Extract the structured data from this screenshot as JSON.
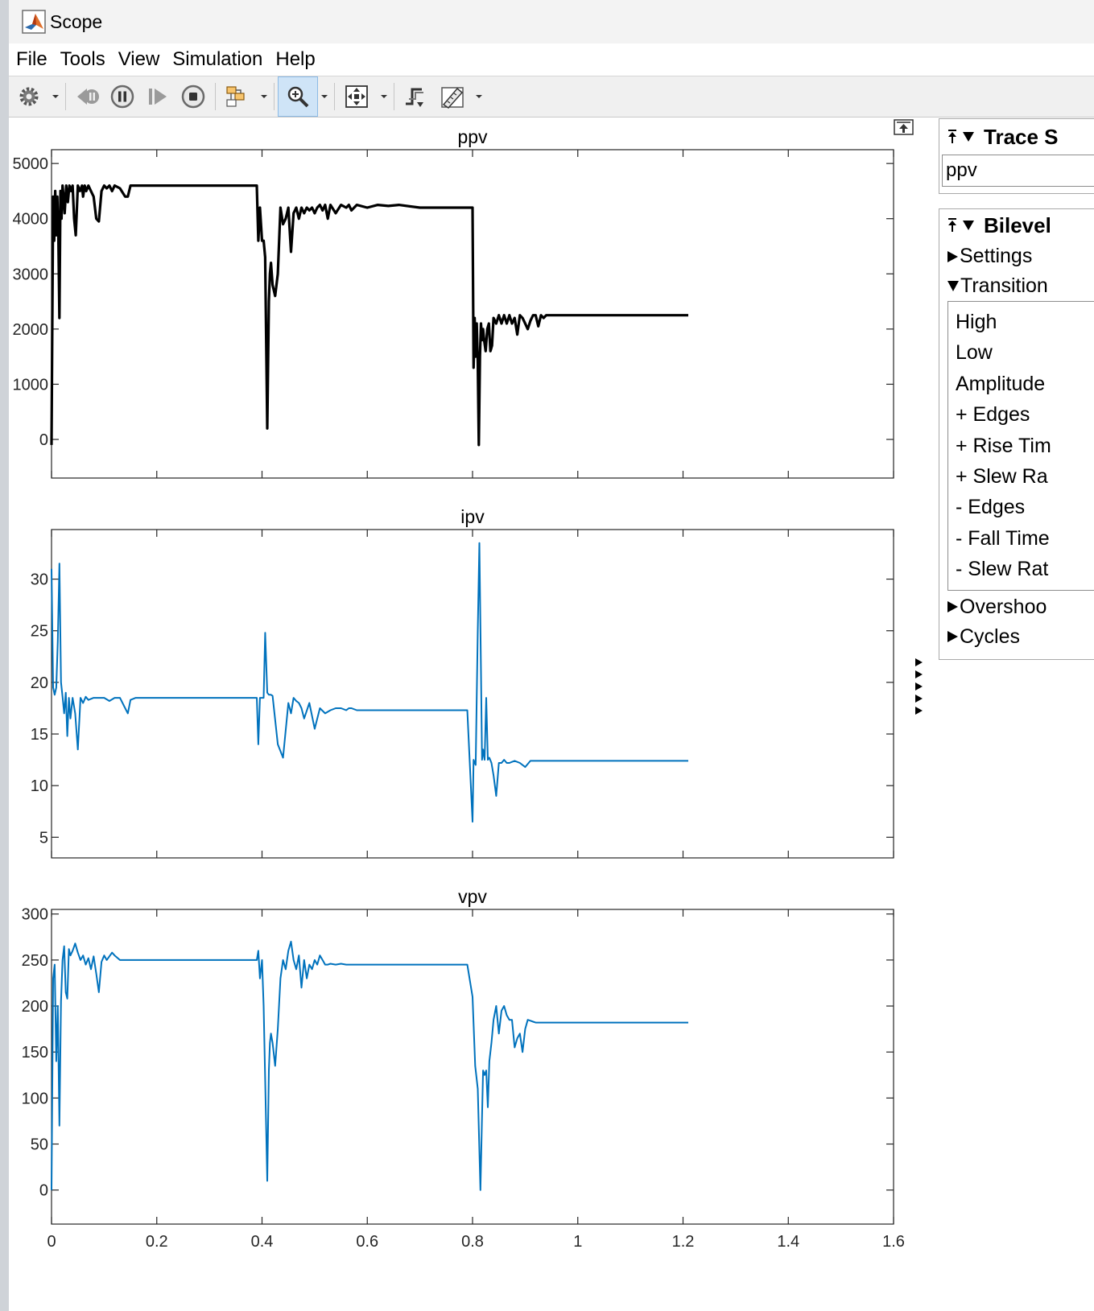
{
  "window": {
    "title": "Scope"
  },
  "menubar": {
    "items": [
      {
        "label": "File",
        "name": "menu-file"
      },
      {
        "label": "Tools",
        "name": "menu-tools"
      },
      {
        "label": "View",
        "name": "menu-view"
      },
      {
        "label": "Simulation",
        "name": "menu-simulation"
      },
      {
        "label": "Help",
        "name": "menu-help"
      }
    ]
  },
  "toolbar": {
    "buttons": [
      {
        "name": "settings-gear-button",
        "icon": "gear-icon"
      },
      {
        "name": "step-back-button",
        "icon": "step-back-icon"
      },
      {
        "name": "pause-button",
        "icon": "pause-icon"
      },
      {
        "name": "step-forward-button",
        "icon": "step-forward-icon"
      },
      {
        "name": "stop-button",
        "icon": "stop-icon"
      },
      {
        "name": "highlight-block-button",
        "icon": "block-diagram-icon"
      },
      {
        "name": "zoom-in-button",
        "icon": "zoom-in-icon",
        "active": true
      },
      {
        "name": "autoscale-button",
        "icon": "autoscale-icon"
      },
      {
        "name": "triggers-button",
        "icon": "trigger-icon"
      },
      {
        "name": "measurements-button",
        "icon": "ruler-icon"
      }
    ]
  },
  "colors": {
    "ppv_line": "#000000",
    "ipv_line": "#0072bd",
    "vpv_line": "#0072bd",
    "toolbar_active": "#cfe4f7"
  },
  "trace_selection": {
    "title": "Trace S",
    "selected": "ppv"
  },
  "bilevel": {
    "title": "Bilevel",
    "sections": [
      {
        "label": "Settings",
        "expanded": false
      },
      {
        "label": "Transition",
        "expanded": true
      },
      {
        "label": "Overshoo",
        "expanded": false
      },
      {
        "label": "Cycles",
        "expanded": false
      }
    ],
    "transition_items": [
      "High",
      "Low",
      "Amplitude",
      "+ Edges",
      "+ Rise Tim",
      "+ Slew Ra",
      "- Edges",
      "- Fall Time",
      "- Slew Rat"
    ]
  },
  "chart_data": [
    {
      "type": "line",
      "title": "ppv",
      "xlim": [
        0,
        1.6
      ],
      "ylim": [
        -700,
        5250
      ],
      "yticks": [
        0,
        1000,
        2000,
        3000,
        4000,
        5000
      ],
      "xticks": [
        0,
        0.2,
        0.4,
        0.6,
        0.8,
        1,
        1.2,
        1.4,
        1.6
      ],
      "show_x_ticklabels": false,
      "series": [
        {
          "x": [
            0,
            0.003,
            0.005,
            0.007,
            0.009,
            0.011,
            0.013,
            0.015,
            0.017,
            0.019,
            0.021,
            0.023,
            0.025,
            0.028,
            0.031,
            0.034,
            0.037,
            0.04,
            0.043,
            0.046,
            0.05,
            0.054,
            0.058,
            0.06,
            0.063,
            0.066,
            0.07,
            0.075,
            0.08,
            0.085,
            0.09,
            0.095,
            0.1,
            0.105,
            0.11,
            0.115,
            0.12,
            0.13,
            0.14,
            0.145,
            0.15,
            0.16,
            0.2,
            0.25,
            0.3,
            0.35,
            0.39,
            0.393,
            0.396,
            0.4,
            0.403,
            0.406,
            0.41,
            0.413,
            0.415,
            0.417,
            0.42,
            0.425,
            0.43,
            0.435,
            0.44,
            0.445,
            0.45,
            0.455,
            0.46,
            0.465,
            0.47,
            0.475,
            0.48,
            0.485,
            0.49,
            0.495,
            0.5,
            0.505,
            0.51,
            0.515,
            0.52,
            0.525,
            0.53,
            0.54,
            0.55,
            0.56,
            0.565,
            0.57,
            0.58,
            0.6,
            0.62,
            0.64,
            0.66,
            0.7,
            0.75,
            0.79,
            0.8,
            0.802,
            0.804,
            0.806,
            0.808,
            0.81,
            0.812,
            0.814,
            0.816,
            0.818,
            0.82,
            0.822,
            0.825,
            0.828,
            0.831,
            0.834,
            0.837,
            0.84,
            0.845,
            0.85,
            0.855,
            0.86,
            0.865,
            0.87,
            0.875,
            0.88,
            0.885,
            0.89,
            0.895,
            0.9,
            0.905,
            0.91,
            0.915,
            0.92,
            0.925,
            0.93,
            0.935,
            0.94,
            0.95,
            0.96,
            1,
            1.1,
            1.21
          ],
          "y": [
            -100,
            4400,
            3600,
            4500,
            3700,
            4400,
            3700,
            2200,
            4500,
            4000,
            4600,
            4400,
            4100,
            4600,
            4300,
            4600,
            4500,
            4600,
            4000,
            3700,
            4600,
            4500,
            4600,
            4400,
            4600,
            4500,
            4600,
            4500,
            4400,
            4000,
            3950,
            4500,
            4600,
            4550,
            4600,
            4500,
            4600,
            4550,
            4400,
            4400,
            4600,
            4600,
            4600,
            4600,
            4600,
            4600,
            4600,
            3600,
            4200,
            3600,
            3600,
            3300,
            200,
            2500,
            3000,
            3200,
            2800,
            2600,
            3000,
            4200,
            3900,
            4000,
            4200,
            3400,
            4100,
            4200,
            4000,
            4200,
            4100,
            4200,
            4150,
            4200,
            4100,
            4200,
            4250,
            4150,
            4250,
            4000,
            4250,
            4100,
            4250,
            4200,
            4250,
            4150,
            4250,
            4200,
            4250,
            4230,
            4250,
            4200,
            4200,
            4200,
            4200,
            1300,
            2200,
            1500,
            2100,
            1400,
            -100,
            1500,
            2100,
            1800,
            2000,
            1800,
            1600,
            2000,
            2100,
            1600,
            1700,
            2200,
            2100,
            2250,
            2100,
            2250,
            2100,
            2250,
            2100,
            2200,
            1900,
            2250,
            2200,
            2100,
            2000,
            2150,
            2250,
            2250,
            2050,
            2250,
            2200,
            2250,
            2250,
            2250,
            2250,
            2250,
            2250
          ],
          "color": "#000000"
        }
      ]
    },
    {
      "type": "line",
      "title": "ipv",
      "xlim": [
        0,
        1.6
      ],
      "ylim": [
        3,
        34.8
      ],
      "yticks": [
        5,
        10,
        15,
        20,
        25,
        30
      ],
      "xticks": [
        0,
        0.2,
        0.4,
        0.6,
        0.8,
        1,
        1.2,
        1.4,
        1.6
      ],
      "show_x_ticklabels": false,
      "series": [
        {
          "x": [
            0,
            0.003,
            0.006,
            0.009,
            0.012,
            0.015,
            0.018,
            0.021,
            0.024,
            0.027,
            0.03,
            0.033,
            0.036,
            0.04,
            0.045,
            0.05,
            0.055,
            0.06,
            0.065,
            0.07,
            0.08,
            0.09,
            0.1,
            0.11,
            0.12,
            0.13,
            0.14,
            0.145,
            0.15,
            0.16,
            0.2,
            0.3,
            0.39,
            0.393,
            0.396,
            0.4,
            0.403,
            0.406,
            0.41,
            0.413,
            0.415,
            0.417,
            0.42,
            0.43,
            0.44,
            0.45,
            0.455,
            0.46,
            0.465,
            0.47,
            0.475,
            0.48,
            0.49,
            0.5,
            0.51,
            0.52,
            0.53,
            0.54,
            0.55,
            0.56,
            0.565,
            0.57,
            0.58,
            0.6,
            0.62,
            0.65,
            0.7,
            0.79,
            0.8,
            0.802,
            0.806,
            0.81,
            0.813,
            0.816,
            0.818,
            0.82,
            0.823,
            0.826,
            0.829,
            0.832,
            0.836,
            0.84,
            0.845,
            0.85,
            0.855,
            0.86,
            0.865,
            0.87,
            0.875,
            0.88,
            0.89,
            0.9,
            0.91,
            0.92,
            0.93,
            0.935,
            0.94,
            0.95,
            0.96,
            1,
            1.1,
            1.21
          ],
          "y": [
            31,
            19.5,
            18.8,
            19.5,
            24,
            31.5,
            20,
            18.6,
            17,
            19,
            14.8,
            18.5,
            16.5,
            18.5,
            17,
            13.5,
            18.5,
            18,
            18.6,
            18.3,
            18.5,
            18.5,
            18.5,
            18.2,
            18.5,
            18.5,
            17.5,
            17,
            18.3,
            18.5,
            18.5,
            18.5,
            18.5,
            14,
            18.5,
            18.5,
            18.5,
            24.8,
            19,
            18.8,
            18.8,
            18.8,
            18.7,
            14,
            12.7,
            18,
            17,
            18.5,
            18.2,
            18,
            17.5,
            16.5,
            18,
            15.5,
            17.5,
            17,
            17.3,
            17.5,
            17.5,
            17.3,
            17.5,
            17.5,
            17.3,
            17.3,
            17.3,
            17.3,
            17.3,
            17.3,
            6.5,
            12.5,
            12,
            25,
            33.5,
            21,
            12.5,
            13.5,
            12.5,
            18.5,
            12.5,
            12.7,
            12.2,
            11,
            9,
            12.2,
            12.2,
            12.5,
            12.2,
            12.2,
            12.3,
            12.4,
            12.2,
            11.8,
            12.4,
            12.4,
            12.4,
            12.4,
            12.4,
            12.4,
            12.4,
            12.4,
            12.4,
            12.4
          ],
          "color": "#0072bd"
        }
      ]
    },
    {
      "type": "line",
      "title": "vpv",
      "xlim": [
        0,
        1.6
      ],
      "ylim": [
        -37,
        305
      ],
      "yticks": [
        0,
        50,
        100,
        150,
        200,
        250,
        300
      ],
      "xticks": [
        0,
        0.2,
        0.4,
        0.6,
        0.8,
        1,
        1.2,
        1.4,
        1.6
      ],
      "xticklabels": [
        "0",
        "0.2",
        "0.4",
        "0.6",
        "0.8",
        "1",
        "1.2",
        "1.4",
        "1.6"
      ],
      "show_x_ticklabels": true,
      "series": [
        {
          "x": [
            0,
            0.003,
            0.006,
            0.009,
            0.012,
            0.015,
            0.018,
            0.021,
            0.024,
            0.027,
            0.03,
            0.033,
            0.036,
            0.04,
            0.045,
            0.05,
            0.055,
            0.06,
            0.065,
            0.07,
            0.075,
            0.08,
            0.085,
            0.09,
            0.095,
            0.1,
            0.105,
            0.11,
            0.115,
            0.12,
            0.13,
            0.14,
            0.15,
            0.16,
            0.2,
            0.3,
            0.39,
            0.393,
            0.396,
            0.4,
            0.403,
            0.406,
            0.41,
            0.413,
            0.415,
            0.417,
            0.42,
            0.425,
            0.43,
            0.435,
            0.44,
            0.445,
            0.45,
            0.455,
            0.46,
            0.465,
            0.47,
            0.475,
            0.48,
            0.485,
            0.49,
            0.495,
            0.5,
            0.505,
            0.51,
            0.515,
            0.52,
            0.525,
            0.53,
            0.54,
            0.55,
            0.56,
            0.57,
            0.58,
            0.6,
            0.65,
            0.7,
            0.79,
            0.8,
            0.805,
            0.81,
            0.815,
            0.818,
            0.82,
            0.823,
            0.826,
            0.829,
            0.832,
            0.836,
            0.84,
            0.845,
            0.85,
            0.855,
            0.86,
            0.865,
            0.87,
            0.875,
            0.88,
            0.885,
            0.89,
            0.895,
            0.9,
            0.905,
            0.91,
            0.915,
            0.92,
            0.925,
            0.93,
            0.935,
            0.94,
            0.95,
            0.96,
            1,
            1.1,
            1.21
          ],
          "y": [
            0,
            230,
            245,
            140,
            200,
            70,
            205,
            250,
            265,
            215,
            208,
            262,
            255,
            260,
            268,
            258,
            250,
            255,
            245,
            252,
            240,
            254,
            235,
            215,
            248,
            255,
            250,
            254,
            258,
            255,
            250,
            250,
            250,
            250,
            250,
            250,
            250,
            260,
            230,
            250,
            200,
            120,
            10,
            130,
            160,
            170,
            160,
            135,
            175,
            230,
            250,
            240,
            260,
            270,
            250,
            240,
            255,
            220,
            250,
            230,
            245,
            240,
            250,
            245,
            255,
            250,
            245,
            245,
            246,
            245,
            246,
            245,
            245,
            245,
            245,
            245,
            245,
            245,
            210,
            135,
            110,
            0,
            80,
            130,
            125,
            130,
            90,
            140,
            160,
            185,
            200,
            170,
            195,
            200,
            190,
            185,
            185,
            155,
            165,
            170,
            150,
            175,
            185,
            184,
            183,
            182,
            182,
            182,
            182,
            182,
            182,
            182,
            182,
            182,
            182
          ],
          "color": "#0072bd"
        }
      ]
    }
  ]
}
